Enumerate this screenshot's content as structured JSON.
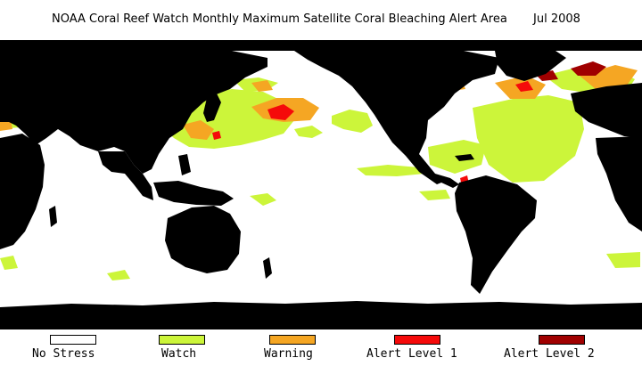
{
  "title": {
    "main": "NOAA Coral Reef Watch Monthly Maximum Satellite Coral Bleaching Alert Area",
    "date": "Jul 2008"
  },
  "colors": {
    "ocean": "#ffffff",
    "land": "#000000",
    "no_stress": "#ffffff",
    "watch": "#ccf53a",
    "warning": "#f5a623",
    "alert_level_1": "#f50a0a",
    "alert_level_2": "#a00000"
  },
  "legend": [
    {
      "label": "No Stress",
      "color": "#ffffff"
    },
    {
      "label": "Watch",
      "color": "#ccf53a"
    },
    {
      "label": "Warning",
      "color": "#f5a623"
    },
    {
      "label": "Alert Level 1",
      "color": "#f50a0a"
    },
    {
      "label": "Alert Level 2",
      "color": "#a00000"
    }
  ]
}
